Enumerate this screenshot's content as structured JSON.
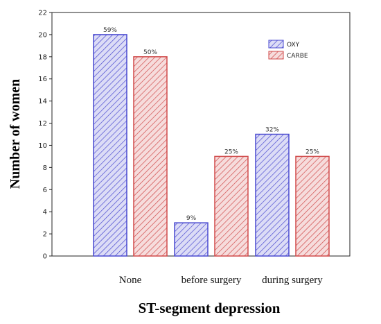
{
  "chart_data": {
    "type": "bar",
    "categories": [
      "None",
      "before surgery",
      "during surgery"
    ],
    "series": [
      {
        "name": "OXY",
        "values": [
          20,
          3,
          11
        ],
        "labels": [
          "59%",
          "9%",
          "32%"
        ],
        "color": "#4a4ad0",
        "fill": "#dcdcf6"
      },
      {
        "name": "CARBE",
        "values": [
          18,
          9,
          9
        ],
        "labels": [
          "50%",
          "25%",
          "25%"
        ],
        "color": "#d04a4a",
        "fill": "#f6dcdc"
      }
    ],
    "xlabel": "ST-segment depression",
    "ylabel": "Number of women",
    "ylim": [
      0,
      22
    ],
    "yticks": [
      0,
      2,
      4,
      6,
      8,
      10,
      12,
      14,
      16,
      18,
      20,
      22
    ],
    "grid": false,
    "legend_position": "top-right"
  }
}
